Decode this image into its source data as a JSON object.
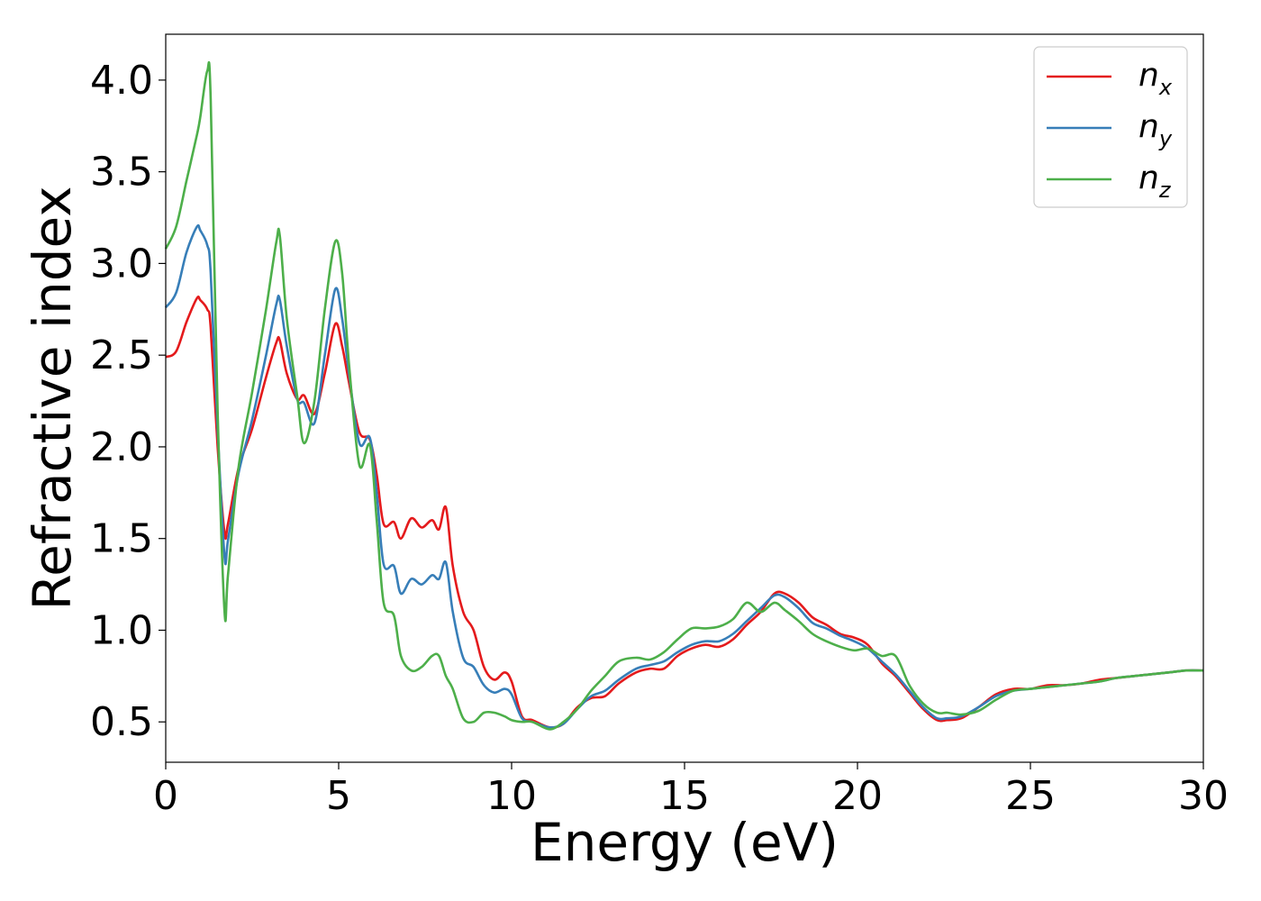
{
  "chart_data": {
    "type": "line",
    "title": "",
    "xlabel": "Energy (eV)",
    "ylabel": "Refractive index",
    "xlim": [
      0,
      30
    ],
    "ylim": [
      0.28,
      4.25
    ],
    "xticks": [
      0,
      5,
      10,
      15,
      20,
      25,
      30
    ],
    "xtick_labels": [
      "0",
      "5",
      "10",
      "15",
      "20",
      "25",
      "30"
    ],
    "yticks": [
      0.5,
      1.0,
      1.5,
      2.0,
      2.5,
      3.0,
      3.5,
      4.0
    ],
    "ytick_labels": [
      "0.5",
      "1.0",
      "1.5",
      "2.0",
      "2.5",
      "3.0",
      "3.5",
      "4.0"
    ],
    "grid": false,
    "legend_position": "top-right",
    "series": [
      {
        "name": "n",
        "subscript": "x",
        "color": "#e41a1c",
        "x": [
          0,
          0.3,
          0.6,
          0.9,
          1.0,
          1.2,
          1.3,
          1.5,
          1.7,
          1.8,
          2.1,
          2.5,
          2.9,
          3.2,
          3.3,
          3.5,
          3.8,
          4.0,
          4.3,
          4.6,
          4.9,
          5.1,
          5.3,
          5.6,
          5.9,
          6.1,
          6.3,
          6.6,
          6.8,
          7.1,
          7.4,
          7.7,
          7.9,
          8.1,
          8.3,
          8.6,
          8.9,
          9.2,
          9.5,
          9.8,
          10.0,
          10.3,
          10.6,
          11.1,
          11.5,
          11.9,
          12.3,
          12.7,
          13.1,
          13.6,
          14.0,
          14.4,
          14.8,
          15.2,
          15.6,
          16.0,
          16.4,
          16.8,
          17.2,
          17.6,
          17.9,
          18.3,
          18.7,
          19.1,
          19.5,
          19.9,
          20.3,
          20.7,
          21.1,
          21.5,
          21.9,
          22.3,
          22.6,
          23.0,
          23.5,
          24.0,
          24.5,
          25.0,
          25.5,
          26.0,
          26.5,
          27.0,
          27.5,
          28.0,
          28.5,
          29.0,
          29.5,
          30.0
        ],
        "values": [
          2.49,
          2.52,
          2.68,
          2.81,
          2.8,
          2.75,
          2.65,
          2.0,
          1.53,
          1.58,
          1.88,
          2.1,
          2.38,
          2.57,
          2.58,
          2.4,
          2.26,
          2.28,
          2.18,
          2.4,
          2.67,
          2.55,
          2.35,
          2.08,
          2.04,
          1.85,
          1.58,
          1.59,
          1.5,
          1.61,
          1.56,
          1.6,
          1.55,
          1.67,
          1.35,
          1.1,
          1.0,
          0.8,
          0.73,
          0.77,
          0.72,
          0.53,
          0.51,
          0.47,
          0.49,
          0.58,
          0.63,
          0.64,
          0.71,
          0.77,
          0.79,
          0.79,
          0.86,
          0.9,
          0.92,
          0.91,
          0.95,
          1.03,
          1.1,
          1.2,
          1.2,
          1.15,
          1.07,
          1.03,
          0.98,
          0.96,
          0.92,
          0.82,
          0.75,
          0.66,
          0.57,
          0.51,
          0.51,
          0.52,
          0.58,
          0.65,
          0.68,
          0.68,
          0.7,
          0.7,
          0.71,
          0.73,
          0.74,
          0.75,
          0.76,
          0.77,
          0.78,
          0.78
        ]
      },
      {
        "name": "n",
        "subscript": "y",
        "color": "#377eb8",
        "x": [
          0,
          0.3,
          0.6,
          0.9,
          1.0,
          1.2,
          1.3,
          1.5,
          1.7,
          1.8,
          2.1,
          2.5,
          2.9,
          3.2,
          3.3,
          3.5,
          3.8,
          4.0,
          4.3,
          4.6,
          4.9,
          5.1,
          5.3,
          5.6,
          5.9,
          6.1,
          6.3,
          6.6,
          6.8,
          7.1,
          7.4,
          7.7,
          7.9,
          8.1,
          8.3,
          8.6,
          8.9,
          9.2,
          9.5,
          9.8,
          10.0,
          10.3,
          10.6,
          11.1,
          11.5,
          11.9,
          12.3,
          12.7,
          13.1,
          13.6,
          14.0,
          14.4,
          14.8,
          15.2,
          15.6,
          16.0,
          16.4,
          16.8,
          17.2,
          17.6,
          17.9,
          18.3,
          18.7,
          19.1,
          19.5,
          19.9,
          20.3,
          20.7,
          21.1,
          21.5,
          21.9,
          22.3,
          22.6,
          23.0,
          23.5,
          24.0,
          24.5,
          25.0,
          25.5,
          26.0,
          26.5,
          27.0,
          27.5,
          28.0,
          28.5,
          29.0,
          29.5,
          30.0
        ],
        "values": [
          2.76,
          2.84,
          3.06,
          3.2,
          3.18,
          3.1,
          2.95,
          2.1,
          1.4,
          1.49,
          1.85,
          2.15,
          2.5,
          2.78,
          2.8,
          2.55,
          2.26,
          2.24,
          2.13,
          2.5,
          2.86,
          2.7,
          2.4,
          2.02,
          2.05,
          1.75,
          1.36,
          1.35,
          1.2,
          1.28,
          1.25,
          1.3,
          1.28,
          1.37,
          1.1,
          0.85,
          0.8,
          0.7,
          0.66,
          0.68,
          0.65,
          0.52,
          0.5,
          0.47,
          0.49,
          0.57,
          0.64,
          0.67,
          0.73,
          0.79,
          0.81,
          0.83,
          0.88,
          0.92,
          0.94,
          0.94,
          0.98,
          1.05,
          1.12,
          1.19,
          1.18,
          1.12,
          1.04,
          1.01,
          0.97,
          0.94,
          0.9,
          0.83,
          0.76,
          0.67,
          0.58,
          0.52,
          0.52,
          0.53,
          0.58,
          0.64,
          0.67,
          0.68,
          0.69,
          0.7,
          0.71,
          0.72,
          0.74,
          0.75,
          0.76,
          0.77,
          0.78,
          0.78
        ]
      },
      {
        "name": "n",
        "subscript": "z",
        "color": "#4daf4a",
        "x": [
          0,
          0.3,
          0.6,
          0.9,
          1.0,
          1.2,
          1.3,
          1.5,
          1.7,
          1.8,
          2.1,
          2.5,
          2.9,
          3.2,
          3.3,
          3.5,
          3.8,
          4.0,
          4.3,
          4.6,
          4.9,
          5.1,
          5.3,
          5.6,
          5.9,
          6.1,
          6.3,
          6.6,
          6.8,
          7.1,
          7.4,
          7.7,
          7.9,
          8.1,
          8.3,
          8.6,
          8.9,
          9.2,
          9.5,
          9.8,
          10.0,
          10.3,
          10.6,
          11.1,
          11.5,
          11.9,
          12.3,
          12.7,
          13.1,
          13.6,
          14.0,
          14.4,
          14.8,
          15.2,
          15.6,
          16.0,
          16.4,
          16.8,
          17.2,
          17.6,
          17.9,
          18.3,
          18.7,
          19.1,
          19.5,
          19.9,
          20.3,
          20.7,
          21.1,
          21.5,
          21.9,
          22.3,
          22.6,
          23.0,
          23.5,
          24.0,
          24.5,
          25.0,
          25.5,
          26.0,
          26.5,
          27.0,
          27.5,
          28.0,
          28.5,
          29.0,
          29.5,
          30.0
        ],
        "values": [
          3.08,
          3.2,
          3.45,
          3.7,
          3.8,
          4.05,
          3.9,
          2.2,
          1.1,
          1.3,
          1.88,
          2.3,
          2.75,
          3.12,
          3.15,
          2.7,
          2.28,
          2.02,
          2.25,
          2.75,
          3.12,
          2.95,
          2.45,
          1.9,
          2.01,
          1.6,
          1.15,
          1.08,
          0.86,
          0.78,
          0.8,
          0.86,
          0.86,
          0.75,
          0.68,
          0.52,
          0.5,
          0.55,
          0.55,
          0.53,
          0.51,
          0.5,
          0.5,
          0.46,
          0.5,
          0.57,
          0.67,
          0.75,
          0.83,
          0.85,
          0.84,
          0.88,
          0.95,
          1.01,
          1.01,
          1.02,
          1.06,
          1.15,
          1.1,
          1.15,
          1.11,
          1.05,
          0.98,
          0.94,
          0.91,
          0.89,
          0.9,
          0.86,
          0.86,
          0.7,
          0.6,
          0.55,
          0.55,
          0.54,
          0.56,
          0.62,
          0.67,
          0.68,
          0.69,
          0.7,
          0.71,
          0.72,
          0.74,
          0.75,
          0.76,
          0.77,
          0.78,
          0.78
        ]
      }
    ]
  }
}
